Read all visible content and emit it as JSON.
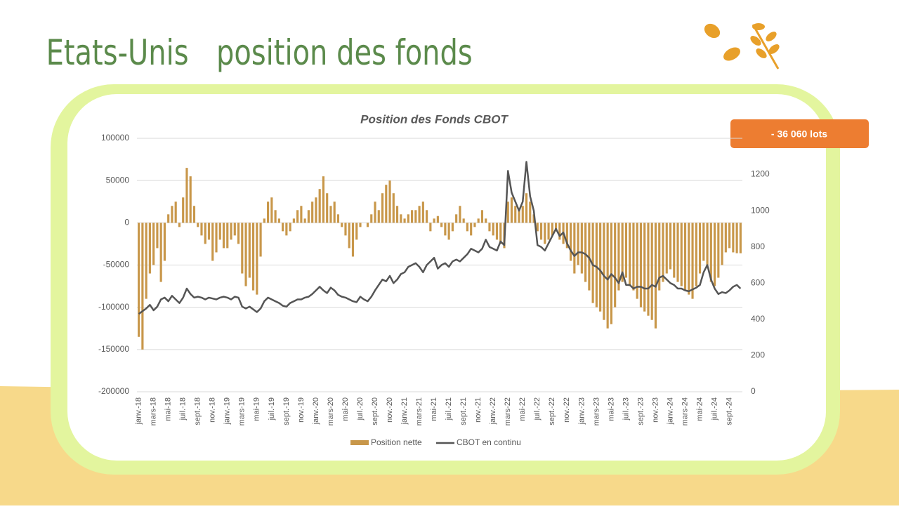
{
  "title_left": "Etats-Unis",
  "title_right": "position des fonds",
  "badge": "- 36 060 lots",
  "chart_data": {
    "type": "combo",
    "title": "Position des Fonds CBOT",
    "categories": [
      "janv.-18",
      null,
      null,
      null,
      "mars-18",
      null,
      null,
      null,
      "mai-18",
      null,
      null,
      null,
      "juil.-18",
      null,
      null,
      null,
      "sept.-18",
      null,
      null,
      null,
      "nov.-18",
      null,
      null,
      null,
      "janv.-19",
      null,
      null,
      null,
      "mars-19",
      null,
      null,
      null,
      "mai-19",
      null,
      null,
      null,
      "juil.-19",
      null,
      null,
      null,
      "sept.-19",
      null,
      null,
      null,
      "nov.-19",
      null,
      null,
      null,
      "janv.-20",
      null,
      null,
      null,
      "mars-20",
      null,
      null,
      null,
      "mai-20",
      null,
      null,
      null,
      "juil.-20",
      null,
      null,
      null,
      "sept.-20",
      null,
      null,
      null,
      "nov.-20",
      null,
      null,
      null,
      "janv.-21",
      null,
      null,
      null,
      "mars-21",
      null,
      null,
      null,
      "mai-21",
      null,
      null,
      null,
      "juil.-21",
      null,
      null,
      null,
      "sept.-21",
      null,
      null,
      null,
      "nov.-21",
      null,
      null,
      null,
      "janv.-22",
      null,
      null,
      null,
      "mars-22",
      null,
      null,
      null,
      "mai-22",
      null,
      null,
      null,
      "juil.-22",
      null,
      null,
      null,
      "sept.-22",
      null,
      null,
      null,
      "nov.-22",
      null,
      null,
      null,
      "janv.-23",
      null,
      null,
      null,
      "mars-23",
      null,
      null,
      null,
      "mai-23",
      null,
      null,
      null,
      "juil.-23",
      null,
      null,
      null,
      "sept.-23",
      null,
      null,
      null,
      "nov.-23",
      null,
      null,
      null,
      "janv.-24",
      null,
      null,
      null,
      "mars-24",
      null,
      null,
      null,
      "mai-24",
      null,
      null,
      null,
      "juil.-24",
      null,
      null,
      null,
      "sept.-24",
      null,
      null,
      null
    ],
    "series": [
      {
        "name": "Position nette",
        "type": "bar",
        "color": "#c8974a",
        "values": [
          -135000,
          -150000,
          -90000,
          -60000,
          -50000,
          -30000,
          -70000,
          -45000,
          10000,
          20000,
          25000,
          -5000,
          30000,
          65000,
          55000,
          20000,
          -5000,
          -15000,
          -25000,
          -20000,
          -45000,
          -35000,
          -20000,
          -30000,
          -30000,
          -20000,
          -15000,
          -25000,
          -60000,
          -75000,
          -65000,
          -80000,
          -85000,
          -40000,
          5000,
          25000,
          30000,
          15000,
          5000,
          -10000,
          -15000,
          -10000,
          5000,
          15000,
          20000,
          5000,
          15000,
          25000,
          30000,
          40000,
          55000,
          35000,
          20000,
          25000,
          10000,
          -5000,
          -15000,
          -30000,
          -40000,
          -20000,
          -5000,
          0,
          -5000,
          10000,
          25000,
          15000,
          35000,
          45000,
          50000,
          35000,
          20000,
          10000,
          5000,
          10000,
          15000,
          15000,
          20000,
          25000,
          15000,
          -10000,
          5000,
          8000,
          -5000,
          -15000,
          -20000,
          -10000,
          10000,
          20000,
          5000,
          -10000,
          -15000,
          -5000,
          5000,
          15000,
          5000,
          -10000,
          -15000,
          -20000,
          -25000,
          -30000,
          25000,
          30000,
          20000,
          15000,
          20000,
          35000,
          25000,
          10000,
          -10000,
          -20000,
          -25000,
          -20000,
          -15000,
          -10000,
          -20000,
          -25000,
          -30000,
          -45000,
          -60000,
          -50000,
          -60000,
          -70000,
          -80000,
          -95000,
          -100000,
          -105000,
          -115000,
          -125000,
          -120000,
          -100000,
          -80000,
          -70000,
          -65000,
          -75000,
          -80000,
          -90000,
          -100000,
          -105000,
          -110000,
          -115000,
          -125000,
          -80000,
          -70000,
          -60000,
          -55000,
          -65000,
          -70000,
          -75000,
          -80000,
          -85000,
          -90000,
          -75000,
          -60000,
          -45000,
          -50000,
          -70000,
          -75000,
          -65000,
          -50000,
          -35000,
          -30000,
          -35000,
          -36000,
          -36060
        ]
      },
      {
        "name": "CBOT en continu",
        "type": "line",
        "axis": "y2",
        "color": "#555555",
        "values": [
          430,
          445,
          460,
          480,
          450,
          470,
          510,
          520,
          500,
          530,
          510,
          490,
          520,
          570,
          540,
          520,
          525,
          520,
          510,
          520,
          515,
          510,
          520,
          525,
          520,
          510,
          525,
          520,
          470,
          460,
          470,
          455,
          440,
          460,
          500,
          520,
          510,
          500,
          490,
          475,
          470,
          490,
          500,
          510,
          510,
          520,
          525,
          540,
          560,
          580,
          560,
          545,
          575,
          560,
          535,
          525,
          520,
          510,
          500,
          495,
          525,
          510,
          500,
          525,
          560,
          590,
          620,
          610,
          640,
          600,
          620,
          650,
          660,
          690,
          700,
          710,
          690,
          660,
          700,
          720,
          740,
          680,
          700,
          710,
          690,
          720,
          730,
          720,
          740,
          760,
          790,
          780,
          770,
          790,
          840,
          800,
          790,
          780,
          830,
          810,
          1220,
          1100,
          1050,
          1000,
          1050,
          1270,
          1080,
          1000,
          810,
          800,
          780,
          820,
          860,
          900,
          860,
          880,
          820,
          780,
          750,
          770,
          770,
          760,
          740,
          700,
          690,
          670,
          640,
          620,
          650,
          630,
          600,
          660,
          590,
          590,
          570,
          580,
          580,
          570,
          570,
          590,
          580,
          630,
          640,
          620,
          600,
          590,
          570,
          570,
          560,
          555,
          565,
          575,
          590,
          660,
          700,
          620,
          570,
          540,
          550,
          545,
          560,
          580,
          590,
          570
        ]
      }
    ],
    "ylim": [
      -200000,
      100000
    ],
    "yticks": [
      -200000,
      -150000,
      -100000,
      -50000,
      0,
      50000,
      100000
    ],
    "y2lim": [
      0,
      1400
    ],
    "y2ticks": [
      0,
      200,
      400,
      600,
      800,
      1000,
      1200
    ],
    "grid": true
  }
}
